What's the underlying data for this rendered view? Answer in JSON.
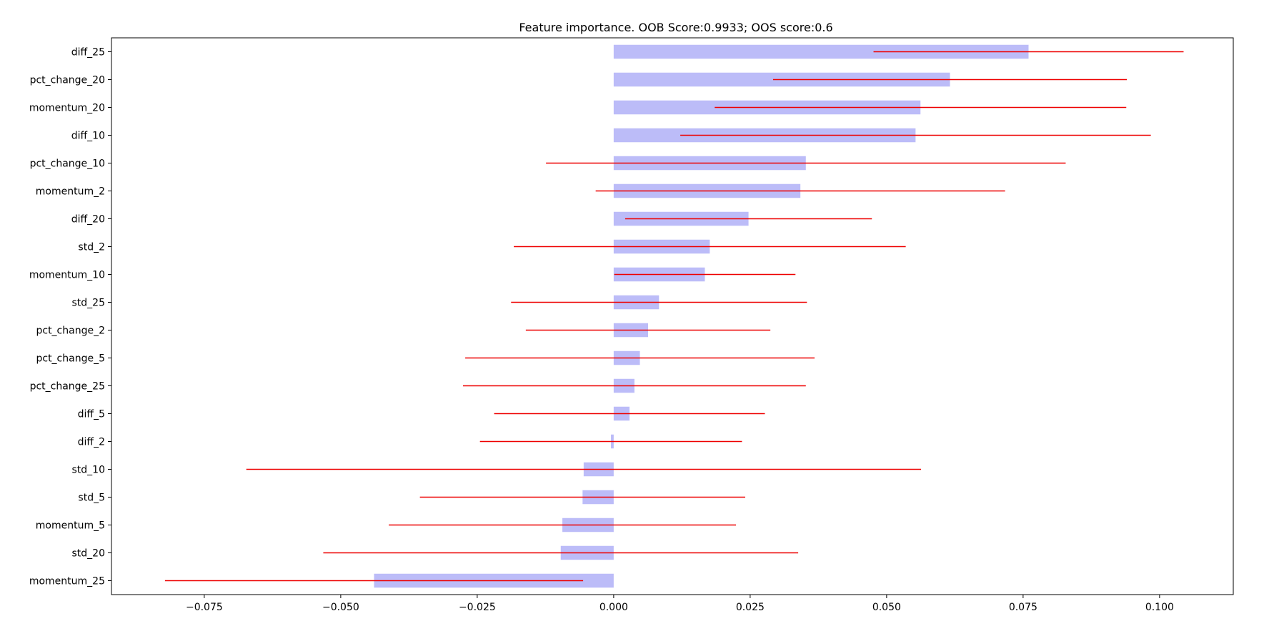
{
  "chart_data": {
    "type": "bar",
    "orientation": "horizontal",
    "title": "Feature importance. OOB Score:0.9933; OOS score:0.6",
    "xlabel": "",
    "ylabel": "",
    "xlim": [
      -0.092,
      0.1135
    ],
    "xticks": [
      -0.075,
      -0.05,
      -0.025,
      0.0,
      0.025,
      0.05,
      0.075,
      0.1
    ],
    "xtick_labels": [
      "−0.075",
      "−0.050",
      "−0.025",
      "0.000",
      "0.025",
      "0.050",
      "0.075",
      "0.100"
    ],
    "grid": false,
    "legend": "none",
    "bar_color": "#bcbcf8",
    "error_color": "#ee0000",
    "categories": [
      "diff_25",
      "pct_change_20",
      "momentum_20",
      "diff_10",
      "pct_change_10",
      "momentum_2",
      "diff_20",
      "std_2",
      "momentum_10",
      "std_25",
      "pct_change_2",
      "pct_change_5",
      "pct_change_25",
      "diff_5",
      "diff_2",
      "std_10",
      "std_5",
      "momentum_5",
      "std_20",
      "momentum_25"
    ],
    "values": [
      0.076,
      0.0616,
      0.0562,
      0.0553,
      0.0352,
      0.0342,
      0.0247,
      0.0176,
      0.0167,
      0.0083,
      0.0063,
      0.0048,
      0.0038,
      0.0029,
      -0.0005,
      -0.0055,
      -0.0057,
      -0.0094,
      -0.0097,
      -0.0439
    ],
    "errors": [
      0.0284,
      0.0324,
      0.0377,
      0.0431,
      0.0476,
      0.0375,
      0.0226,
      0.0359,
      0.0166,
      0.0271,
      0.0224,
      0.032,
      0.0314,
      0.0248,
      0.024,
      0.0618,
      0.0298,
      0.0318,
      0.0435,
      0.0383
    ]
  }
}
